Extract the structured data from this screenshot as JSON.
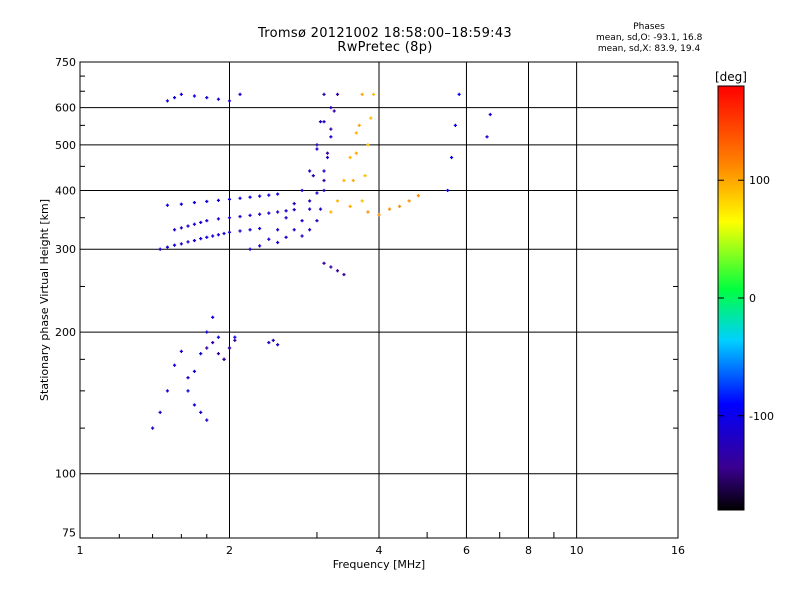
{
  "title_line1": "Tromsø 20121002 18:58:00–18:59:43",
  "title_line2": "RwPretec (8p)",
  "phases": {
    "heading": "Phases",
    "line_o": "mean, sd,O: -93.1, 16.8",
    "line_x": "mean, sd,X: 83.9, 19.4"
  },
  "colorbar": {
    "unit_label": "[deg]",
    "range": [
      -180,
      180
    ],
    "ticks": [
      100,
      0,
      -100
    ],
    "tick_labels": [
      "100",
      "0",
      "-100"
    ]
  },
  "chart_data": {
    "type": "scatter",
    "xlabel": "Frequency [MHz]",
    "ylabel": "Stationary phase Virtual Height [km]",
    "x_scale": "log",
    "y_scale": "log",
    "xlim": [
      1,
      16
    ],
    "ylim": [
      73,
      750
    ],
    "x_ticks": [
      1,
      2,
      4,
      6,
      8,
      10,
      16
    ],
    "x_tick_labels": [
      "1",
      "2",
      "4",
      "6",
      "8",
      "10",
      "16"
    ],
    "y_ticks": [
      75,
      100,
      200,
      300,
      400,
      500,
      600,
      750
    ],
    "y_tick_labels": [
      "75",
      "100",
      "200",
      "300",
      "400",
      "500",
      "600",
      "750"
    ],
    "grid": true,
    "color_encodes": "phase in degrees",
    "series": [
      {
        "x": [
          1.45,
          1.5,
          1.55,
          1.6,
          1.65,
          1.7,
          1.75,
          1.8,
          1.85,
          1.9,
          1.95,
          2.0,
          2.1,
          2.2,
          2.3
        ],
        "y": [
          300,
          303,
          306,
          308,
          311,
          313,
          316,
          318,
          320,
          322,
          324,
          326,
          328,
          330,
          332
        ],
        "phase": -110
      },
      {
        "x": [
          1.55,
          1.6,
          1.65,
          1.7,
          1.75,
          1.8,
          1.9,
          2.0,
          2.1,
          2.2,
          2.3,
          2.4,
          2.5,
          2.6,
          2.7
        ],
        "y": [
          330,
          333,
          336,
          339,
          342,
          345,
          348,
          350,
          352,
          354,
          356,
          358,
          360,
          362,
          364
        ],
        "phase": -115
      },
      {
        "x": [
          1.5,
          1.6,
          1.7,
          1.8,
          1.9,
          2.0,
          2.1,
          2.2,
          2.3,
          2.4,
          2.5
        ],
        "y": [
          372,
          374,
          377,
          379,
          381,
          383,
          385,
          387,
          389,
          391,
          393
        ],
        "phase": -105
      },
      {
        "x": [
          2.2,
          2.3,
          2.4,
          2.5,
          2.6,
          2.7,
          2.8,
          2.9,
          3.0,
          3.1
        ],
        "y": [
          300,
          305,
          315,
          330,
          350,
          375,
          400,
          440,
          490,
          560
        ],
        "phase": -115
      },
      {
        "x": [
          2.5,
          2.6,
          2.7,
          2.8,
          2.9,
          3.0,
          3.1,
          3.2
        ],
        "y": [
          310,
          318,
          330,
          345,
          365,
          395,
          440,
          520
        ],
        "phase": -112
      },
      {
        "x": [
          2.8,
          2.9,
          3.0,
          3.05,
          3.1,
          3.15,
          3.2
        ],
        "y": [
          320,
          330,
          345,
          365,
          400,
          470,
          600
        ],
        "phase": -120
      },
      {
        "x": [
          2.9,
          2.95,
          3.0,
          3.05,
          3.1
        ],
        "y": [
          380,
          430,
          500,
          560,
          640
        ],
        "phase": -125
      },
      {
        "x": [
          3.1,
          3.15,
          3.2,
          3.25,
          3.3
        ],
        "y": [
          420,
          480,
          540,
          590,
          640
        ],
        "phase": -135
      },
      {
        "x": [
          1.5,
          1.55,
          1.6,
          1.7,
          1.8,
          1.9,
          2.0,
          2.1
        ],
        "y": [
          620,
          630,
          640,
          635,
          630,
          625,
          620,
          640
        ],
        "phase": -110
      },
      {
        "x": [
          3.2,
          3.3,
          3.4,
          3.5,
          3.6
        ],
        "y": [
          360,
          380,
          420,
          470,
          530
        ],
        "phase": 95
      },
      {
        "x": [
          3.5,
          3.55,
          3.6,
          3.65,
          3.7
        ],
        "y": [
          370,
          420,
          480,
          550,
          640
        ],
        "phase": 100
      },
      {
        "x": [
          3.7,
          3.75,
          3.8,
          3.85,
          3.9
        ],
        "y": [
          380,
          430,
          500,
          570,
          640
        ],
        "phase": 90
      },
      {
        "x": [
          3.8,
          4.0,
          4.2,
          4.4,
          4.6,
          4.8
        ],
        "y": [
          360,
          355,
          365,
          370,
          380,
          390
        ],
        "phase": 110
      },
      {
        "x": [
          1.4,
          1.45,
          1.5,
          1.55,
          1.6,
          1.65,
          1.7,
          1.75,
          1.8
        ],
        "y": [
          125,
          135,
          150,
          170,
          182,
          160,
          140,
          135,
          130
        ],
        "phase": -110
      },
      {
        "x": [
          1.65,
          1.7,
          1.75,
          1.8,
          1.85,
          1.9,
          1.95,
          2.0,
          2.05
        ],
        "y": [
          150,
          165,
          180,
          200,
          215,
          195,
          175,
          185,
          195
        ],
        "phase": -105
      },
      {
        "x": [
          1.8,
          1.85,
          1.9,
          1.95,
          2.0,
          2.05
        ],
        "y": [
          185,
          190,
          180,
          175,
          185,
          192
        ],
        "phase": -140
      },
      {
        "x": [
          2.4,
          2.45,
          2.5
        ],
        "y": [
          190,
          192,
          188
        ],
        "phase": -120
      },
      {
        "x": [
          3.1,
          3.2,
          3.3,
          3.4
        ],
        "y": [
          280,
          275,
          270,
          265
        ],
        "phase": -140
      },
      {
        "x": [
          5.5,
          5.6,
          5.7,
          5.8
        ],
        "y": [
          400,
          470,
          550,
          640
        ],
        "phase": -100
      },
      {
        "x": [
          6.6,
          6.7
        ],
        "y": [
          520,
          580
        ],
        "phase": -110
      }
    ]
  }
}
